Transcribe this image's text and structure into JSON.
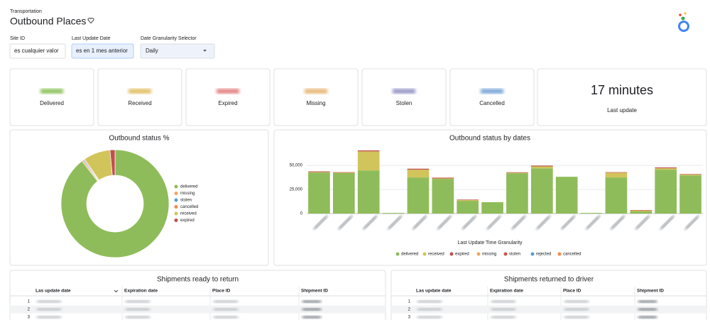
{
  "header": {
    "section": "Transportation",
    "title": "Outbound Places"
  },
  "filters": [
    {
      "label": "Site ID",
      "value": "es cualquier valor"
    },
    {
      "label": "Last Update Date",
      "value": "es en 1 mes anterior"
    },
    {
      "label": "Date Granularity Selector",
      "value": "Daily"
    }
  ],
  "kpis": [
    {
      "label": "Delivered",
      "color": "#8fc45f"
    },
    {
      "label": "Received",
      "color": "#e3c16a"
    },
    {
      "label": "Expired",
      "color": "#e48585"
    },
    {
      "label": "Missing",
      "color": "#e8b87a"
    },
    {
      "label": "Stolen",
      "color": "#9a9ac8"
    },
    {
      "label": "Cancelled",
      "color": "#7fa7d8"
    }
  ],
  "last_update": {
    "value": "17 minutes",
    "label": "Last update"
  },
  "chart_data": [
    {
      "type": "donut",
      "title": "Outbound status %",
      "categories": [
        "delivered",
        "missing",
        "stolen",
        "cancelled",
        "received",
        "expired"
      ],
      "colors": [
        "#8fbc5a",
        "#f2a65a",
        "#5b9bd5",
        "#f08a4b",
        "#d1c45b",
        "#c0504d"
      ],
      "values": [
        89.5,
        0.4,
        0.3,
        0.3,
        8.0,
        1.5
      ]
    },
    {
      "type": "stacked-bar",
      "title": "Outbound status by dates",
      "x_label": "Last Update Time Granularity",
      "categories": [
        null,
        null,
        null,
        null,
        null,
        null,
        null,
        null,
        null,
        null,
        null,
        null,
        null,
        null,
        null,
        null
      ],
      "ylim": [
        0,
        70000
      ],
      "yticks": [
        0,
        {
          "value": 25000,
          "label": "25,000"
        },
        {
          "value": 50000,
          "label": "50,000"
        }
      ],
      "grid": true,
      "series": [
        {
          "name": "delivered",
          "color": "#8fbc5a",
          "values": [
            42600,
            42000,
            44800,
            700,
            37500,
            36000,
            13200,
            11800,
            41900,
            47000,
            38200,
            700,
            37500,
            2200,
            45600,
            39700
          ]
        },
        {
          "name": "received",
          "color": "#d1c45b",
          "values": [
            500,
            500,
            19800,
            0,
            8100,
            500,
            800,
            0,
            500,
            2000,
            0,
            0,
            5000,
            1000,
            1500,
            800
          ]
        },
        {
          "name": "expired",
          "color": "#c0504d",
          "values": [
            700,
            500,
            1000,
            0,
            1000,
            800,
            500,
            0,
            500,
            800,
            0,
            0,
            500,
            500,
            800,
            500
          ]
        },
        {
          "name": "missing",
          "color": "#f2a65a",
          "values": [
            0,
            0,
            0,
            0,
            0,
            0,
            0,
            0,
            0,
            0,
            0,
            0,
            0,
            0,
            0,
            0
          ]
        },
        {
          "name": "stolen",
          "color": "#d9534f",
          "values": [
            0,
            0,
            0,
            0,
            0,
            0,
            0,
            0,
            0,
            0,
            0,
            0,
            0,
            0,
            0,
            0
          ]
        },
        {
          "name": "rejected",
          "color": "#5b9bd5",
          "values": [
            0,
            0,
            0,
            0,
            0,
            0,
            0,
            0,
            0,
            0,
            0,
            0,
            0,
            0,
            0,
            0
          ]
        },
        {
          "name": "cancelled",
          "color": "#f08a4b",
          "values": [
            0,
            0,
            0,
            0,
            0,
            0,
            0,
            0,
            0,
            0,
            0,
            0,
            0,
            0,
            0,
            0
          ]
        }
      ]
    }
  ],
  "tables": [
    {
      "title": "Shipments ready to return",
      "columns": [
        "Las update date",
        "Expiration date",
        "Place ID",
        "Shipment ID"
      ],
      "row_numbers": [
        "1",
        "2",
        "3"
      ]
    },
    {
      "title": "Shipments returned to driver",
      "columns": [
        "Las update date",
        "Expiration date",
        "Place ID",
        "Shipment ID"
      ],
      "row_numbers": [
        "1",
        "2",
        "3"
      ]
    }
  ]
}
